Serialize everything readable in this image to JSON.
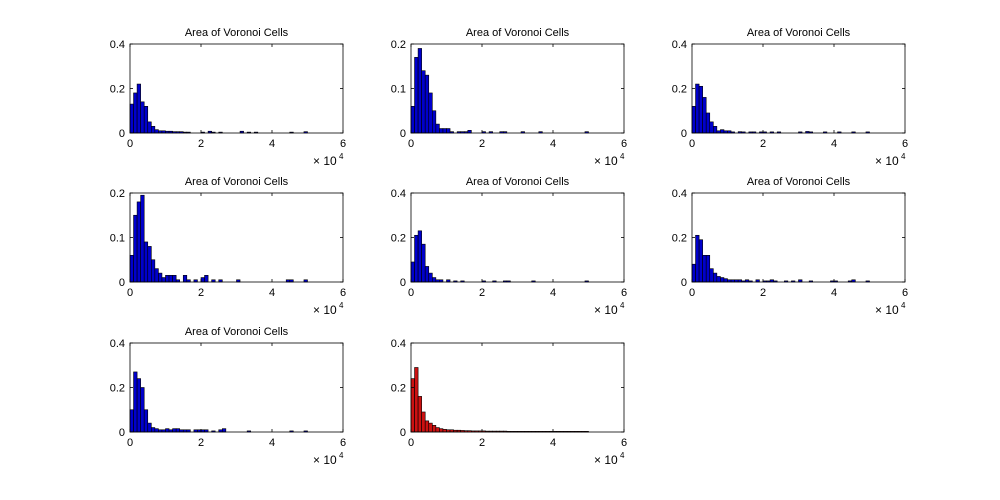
{
  "figure": {
    "background": "#ffffff"
  },
  "chart_data": [
    {
      "type": "bar",
      "title": "Area of Voronoi Cells",
      "xlabel": "",
      "ylabel": "",
      "x_multiplier": "× 10",
      "x_multiplier_exp": "4",
      "xlim": [
        0,
        60000
      ],
      "ylim": [
        0,
        0.4
      ],
      "xticks": [
        "0",
        "2",
        "4",
        "6"
      ],
      "yticks": [
        "0",
        "0.2",
        "0.4"
      ],
      "bin_width": 1000,
      "color": "#0000cc",
      "grid": false,
      "bins": [
        {
          "x": 0,
          "y": 0.13
        },
        {
          "x": 1000,
          "y": 0.18
        },
        {
          "x": 2000,
          "y": 0.22
        },
        {
          "x": 3000,
          "y": 0.14
        },
        {
          "x": 4000,
          "y": 0.12
        },
        {
          "x": 5000,
          "y": 0.05
        },
        {
          "x": 6000,
          "y": 0.03
        },
        {
          "x": 7000,
          "y": 0.015
        },
        {
          "x": 8000,
          "y": 0.01
        },
        {
          "x": 9000,
          "y": 0.01
        },
        {
          "x": 10000,
          "y": 0.008
        },
        {
          "x": 11000,
          "y": 0.008
        },
        {
          "x": 12000,
          "y": 0.006
        },
        {
          "x": 13000,
          "y": 0.006
        },
        {
          "x": 14000,
          "y": 0.006
        },
        {
          "x": 15000,
          "y": 0.004
        },
        {
          "x": 16000,
          "y": 0.004
        },
        {
          "x": 20000,
          "y": 0.004
        },
        {
          "x": 22000,
          "y": 0.008
        },
        {
          "x": 23000,
          "y": 0.004
        },
        {
          "x": 25000,
          "y": 0.004
        },
        {
          "x": 31000,
          "y": 0.008
        },
        {
          "x": 33000,
          "y": 0.004
        },
        {
          "x": 35000,
          "y": 0.004
        },
        {
          "x": 45000,
          "y": 0.004
        },
        {
          "x": 49000,
          "y": 0.006
        }
      ]
    },
    {
      "type": "bar",
      "title": "Area of Voronoi Cells",
      "xlabel": "",
      "ylabel": "",
      "x_multiplier": "× 10",
      "x_multiplier_exp": "4",
      "xlim": [
        0,
        60000
      ],
      "ylim": [
        0,
        0.2
      ],
      "xticks": [
        "0",
        "2",
        "4",
        "6"
      ],
      "yticks": [
        "0",
        "0.1",
        "0.2"
      ],
      "bin_width": 1000,
      "color": "#0000cc",
      "grid": false,
      "bins": [
        {
          "x": 0,
          "y": 0.06
        },
        {
          "x": 1000,
          "y": 0.17
        },
        {
          "x": 2000,
          "y": 0.19
        },
        {
          "x": 3000,
          "y": 0.14
        },
        {
          "x": 4000,
          "y": 0.13
        },
        {
          "x": 5000,
          "y": 0.09
        },
        {
          "x": 6000,
          "y": 0.05
        },
        {
          "x": 7000,
          "y": 0.02
        },
        {
          "x": 8000,
          "y": 0.01
        },
        {
          "x": 9000,
          "y": 0.01
        },
        {
          "x": 10000,
          "y": 0.01
        },
        {
          "x": 11000,
          "y": 0.003
        },
        {
          "x": 13000,
          "y": 0.003
        },
        {
          "x": 14000,
          "y": 0.003
        },
        {
          "x": 15000,
          "y": 0.003
        },
        {
          "x": 16000,
          "y": 0.006
        },
        {
          "x": 20000,
          "y": 0.003
        },
        {
          "x": 22000,
          "y": 0.003
        },
        {
          "x": 25000,
          "y": 0.003
        },
        {
          "x": 26000,
          "y": 0.003
        },
        {
          "x": 31000,
          "y": 0.003
        },
        {
          "x": 36000,
          "y": 0.003
        },
        {
          "x": 49000,
          "y": 0.003
        }
      ]
    },
    {
      "type": "bar",
      "title": "Area of Voronoi Cells",
      "xlabel": "",
      "ylabel": "",
      "x_multiplier": "× 10",
      "x_multiplier_exp": "4",
      "xlim": [
        0,
        60000
      ],
      "ylim": [
        0,
        0.4
      ],
      "xticks": [
        "0",
        "2",
        "4",
        "6"
      ],
      "yticks": [
        "0",
        "0.2",
        "0.4"
      ],
      "bin_width": 1000,
      "color": "#0000cc",
      "grid": false,
      "bins": [
        {
          "x": 0,
          "y": 0.12
        },
        {
          "x": 1000,
          "y": 0.22
        },
        {
          "x": 2000,
          "y": 0.21
        },
        {
          "x": 3000,
          "y": 0.16
        },
        {
          "x": 4000,
          "y": 0.09
        },
        {
          "x": 5000,
          "y": 0.05
        },
        {
          "x": 6000,
          "y": 0.03
        },
        {
          "x": 7000,
          "y": 0.01
        },
        {
          "x": 8000,
          "y": 0.015
        },
        {
          "x": 9000,
          "y": 0.01
        },
        {
          "x": 10000,
          "y": 0.01
        },
        {
          "x": 11000,
          "y": 0.005
        },
        {
          "x": 13000,
          "y": 0.006
        },
        {
          "x": 14000,
          "y": 0.005
        },
        {
          "x": 16000,
          "y": 0.005
        },
        {
          "x": 17000,
          "y": 0.005
        },
        {
          "x": 19000,
          "y": 0.005
        },
        {
          "x": 20000,
          "y": 0.005
        },
        {
          "x": 22000,
          "y": 0.005
        },
        {
          "x": 24000,
          "y": 0.005
        },
        {
          "x": 30000,
          "y": 0.005
        },
        {
          "x": 32000,
          "y": 0.007
        },
        {
          "x": 33000,
          "y": 0.005
        },
        {
          "x": 37000,
          "y": 0.005
        },
        {
          "x": 41000,
          "y": 0.005
        },
        {
          "x": 45000,
          "y": 0.005
        },
        {
          "x": 49000,
          "y": 0.005
        }
      ]
    },
    {
      "type": "bar",
      "title": "Area of Voronoi Cells",
      "xlabel": "",
      "ylabel": "",
      "x_multiplier": "× 10",
      "x_multiplier_exp": "4",
      "xlim": [
        0,
        60000
      ],
      "ylim": [
        0,
        0.2
      ],
      "xticks": [
        "0",
        "2",
        "4",
        "6"
      ],
      "yticks": [
        "0",
        "0.1",
        "0.2"
      ],
      "bin_width": 1000,
      "color": "#0000cc",
      "grid": false,
      "bins": [
        {
          "x": 0,
          "y": 0.06
        },
        {
          "x": 1000,
          "y": 0.15
        },
        {
          "x": 2000,
          "y": 0.18
        },
        {
          "x": 3000,
          "y": 0.195
        },
        {
          "x": 4000,
          "y": 0.09
        },
        {
          "x": 5000,
          "y": 0.08
        },
        {
          "x": 6000,
          "y": 0.05
        },
        {
          "x": 7000,
          "y": 0.03
        },
        {
          "x": 8000,
          "y": 0.02
        },
        {
          "x": 9000,
          "y": 0.01
        },
        {
          "x": 10000,
          "y": 0.015
        },
        {
          "x": 11000,
          "y": 0.015
        },
        {
          "x": 12000,
          "y": 0.015
        },
        {
          "x": 13000,
          "y": 0.005
        },
        {
          "x": 15000,
          "y": 0.015
        },
        {
          "x": 16000,
          "y": 0.005
        },
        {
          "x": 18000,
          "y": 0.005
        },
        {
          "x": 20000,
          "y": 0.01
        },
        {
          "x": 21000,
          "y": 0.015
        },
        {
          "x": 23000,
          "y": 0.005
        },
        {
          "x": 25000,
          "y": 0.005
        },
        {
          "x": 30000,
          "y": 0.005
        },
        {
          "x": 44000,
          "y": 0.005
        },
        {
          "x": 45000,
          "y": 0.005
        },
        {
          "x": 49000,
          "y": 0.005
        }
      ]
    },
    {
      "type": "bar",
      "title": "Area of Voronoi Cells",
      "xlabel": "",
      "ylabel": "",
      "x_multiplier": "× 10",
      "x_multiplier_exp": "4",
      "xlim": [
        0,
        60000
      ],
      "ylim": [
        0,
        0.4
      ],
      "xticks": [
        "0",
        "2",
        "4",
        "6"
      ],
      "yticks": [
        "0",
        "0.2",
        "0.4"
      ],
      "bin_width": 1000,
      "color": "#0000cc",
      "grid": false,
      "bins": [
        {
          "x": 0,
          "y": 0.09
        },
        {
          "x": 1000,
          "y": 0.21
        },
        {
          "x": 2000,
          "y": 0.23
        },
        {
          "x": 3000,
          "y": 0.17
        },
        {
          "x": 4000,
          "y": 0.07
        },
        {
          "x": 5000,
          "y": 0.04
        },
        {
          "x": 6000,
          "y": 0.02
        },
        {
          "x": 7000,
          "y": 0.01
        },
        {
          "x": 8000,
          "y": 0.01
        },
        {
          "x": 10000,
          "y": 0.01
        },
        {
          "x": 12000,
          "y": 0.005
        },
        {
          "x": 14000,
          "y": 0.005
        },
        {
          "x": 20000,
          "y": 0.005
        },
        {
          "x": 23000,
          "y": 0.005
        },
        {
          "x": 26000,
          "y": 0.005
        },
        {
          "x": 27000,
          "y": 0.005
        },
        {
          "x": 34000,
          "y": 0.005
        },
        {
          "x": 49000,
          "y": 0.005
        }
      ]
    },
    {
      "type": "bar",
      "title": "Area of Voronoi Cells",
      "xlabel": "",
      "ylabel": "",
      "x_multiplier": "× 10",
      "x_multiplier_exp": "4",
      "xlim": [
        0,
        60000
      ],
      "ylim": [
        0,
        0.4
      ],
      "xticks": [
        "0",
        "2",
        "4",
        "6"
      ],
      "yticks": [
        "0",
        "0.2",
        "0.4"
      ],
      "bin_width": 1000,
      "color": "#0000cc",
      "grid": false,
      "bins": [
        {
          "x": 0,
          "y": 0.08
        },
        {
          "x": 1000,
          "y": 0.21
        },
        {
          "x": 2000,
          "y": 0.19
        },
        {
          "x": 3000,
          "y": 0.12
        },
        {
          "x": 4000,
          "y": 0.12
        },
        {
          "x": 5000,
          "y": 0.06
        },
        {
          "x": 6000,
          "y": 0.04
        },
        {
          "x": 7000,
          "y": 0.025
        },
        {
          "x": 8000,
          "y": 0.02
        },
        {
          "x": 9000,
          "y": 0.015
        },
        {
          "x": 10000,
          "y": 0.01
        },
        {
          "x": 11000,
          "y": 0.01
        },
        {
          "x": 12000,
          "y": 0.01
        },
        {
          "x": 13000,
          "y": 0.01
        },
        {
          "x": 14000,
          "y": 0.005
        },
        {
          "x": 15000,
          "y": 0.01
        },
        {
          "x": 16000,
          "y": 0.005
        },
        {
          "x": 18000,
          "y": 0.01
        },
        {
          "x": 20000,
          "y": 0.005
        },
        {
          "x": 21000,
          "y": 0.005
        },
        {
          "x": 22000,
          "y": 0.01
        },
        {
          "x": 23000,
          "y": 0.005
        },
        {
          "x": 26000,
          "y": 0.005
        },
        {
          "x": 28000,
          "y": 0.005
        },
        {
          "x": 30000,
          "y": 0.01
        },
        {
          "x": 33000,
          "y": 0.005
        },
        {
          "x": 39000,
          "y": 0.005
        },
        {
          "x": 40000,
          "y": 0.005
        },
        {
          "x": 44000,
          "y": 0.005
        },
        {
          "x": 45000,
          "y": 0.01
        },
        {
          "x": 49000,
          "y": 0.005
        }
      ]
    },
    {
      "type": "bar",
      "title": "Area of Voronoi Cells",
      "xlabel": "",
      "ylabel": "",
      "x_multiplier": "× 10",
      "x_multiplier_exp": "4",
      "xlim": [
        0,
        60000
      ],
      "ylim": [
        0,
        0.4
      ],
      "xticks": [
        "0",
        "2",
        "4",
        "6"
      ],
      "yticks": [
        "0",
        "0.2",
        "0.4"
      ],
      "bin_width": 1000,
      "color": "#0000cc",
      "grid": false,
      "bins": [
        {
          "x": 0,
          "y": 0.1
        },
        {
          "x": 1000,
          "y": 0.27
        },
        {
          "x": 2000,
          "y": 0.24
        },
        {
          "x": 3000,
          "y": 0.2
        },
        {
          "x": 4000,
          "y": 0.1
        },
        {
          "x": 5000,
          "y": 0.04
        },
        {
          "x": 6000,
          "y": 0.02
        },
        {
          "x": 7000,
          "y": 0.015
        },
        {
          "x": 8000,
          "y": 0.01
        },
        {
          "x": 9000,
          "y": 0.01
        },
        {
          "x": 10000,
          "y": 0.015
        },
        {
          "x": 11000,
          "y": 0.01
        },
        {
          "x": 12000,
          "y": 0.015
        },
        {
          "x": 13000,
          "y": 0.015
        },
        {
          "x": 14000,
          "y": 0.01
        },
        {
          "x": 15000,
          "y": 0.01
        },
        {
          "x": 16000,
          "y": 0.01
        },
        {
          "x": 18000,
          "y": 0.01
        },
        {
          "x": 19000,
          "y": 0.01
        },
        {
          "x": 20000,
          "y": 0.01
        },
        {
          "x": 21000,
          "y": 0.01
        },
        {
          "x": 23000,
          "y": 0.005
        },
        {
          "x": 25000,
          "y": 0.01
        },
        {
          "x": 26000,
          "y": 0.015
        },
        {
          "x": 33000,
          "y": 0.005
        },
        {
          "x": 45000,
          "y": 0.005
        },
        {
          "x": 49000,
          "y": 0.005
        }
      ]
    },
    {
      "type": "bar",
      "title": "",
      "xlabel": "",
      "ylabel": "",
      "x_multiplier": "× 10",
      "x_multiplier_exp": "4",
      "xlim": [
        0,
        60000
      ],
      "ylim": [
        0,
        0.4
      ],
      "xticks": [
        "0",
        "2",
        "4",
        "6"
      ],
      "yticks": [
        "0",
        "0.2",
        "0.4"
      ],
      "bin_width": 1000,
      "color": "#cc1111",
      "grid": false,
      "bins": [
        {
          "x": 0,
          "y": 0.24
        },
        {
          "x": 1000,
          "y": 0.29
        },
        {
          "x": 2000,
          "y": 0.16
        },
        {
          "x": 3000,
          "y": 0.09
        },
        {
          "x": 4000,
          "y": 0.05
        },
        {
          "x": 5000,
          "y": 0.04
        },
        {
          "x": 6000,
          "y": 0.03
        },
        {
          "x": 7000,
          "y": 0.02
        },
        {
          "x": 8000,
          "y": 0.015
        },
        {
          "x": 9000,
          "y": 0.012
        },
        {
          "x": 10000,
          "y": 0.01
        },
        {
          "x": 11000,
          "y": 0.01
        },
        {
          "x": 12000,
          "y": 0.008
        },
        {
          "x": 13000,
          "y": 0.008
        },
        {
          "x": 14000,
          "y": 0.007
        },
        {
          "x": 15000,
          "y": 0.006
        },
        {
          "x": 16000,
          "y": 0.006
        },
        {
          "x": 17000,
          "y": 0.005
        },
        {
          "x": 18000,
          "y": 0.005
        },
        {
          "x": 19000,
          "y": 0.005
        },
        {
          "x": 20000,
          "y": 0.005
        },
        {
          "x": 21000,
          "y": 0.004
        },
        {
          "x": 22000,
          "y": 0.004
        },
        {
          "x": 23000,
          "y": 0.004
        },
        {
          "x": 24000,
          "y": 0.004
        },
        {
          "x": 25000,
          "y": 0.004
        },
        {
          "x": 26000,
          "y": 0.004
        },
        {
          "x": 27000,
          "y": 0.003
        },
        {
          "x": 28000,
          "y": 0.003
        },
        {
          "x": 29000,
          "y": 0.003
        },
        {
          "x": 30000,
          "y": 0.003
        },
        {
          "x": 31000,
          "y": 0.003
        },
        {
          "x": 32000,
          "y": 0.003
        },
        {
          "x": 33000,
          "y": 0.003
        },
        {
          "x": 34000,
          "y": 0.003
        },
        {
          "x": 35000,
          "y": 0.003
        },
        {
          "x": 36000,
          "y": 0.003
        },
        {
          "x": 37000,
          "y": 0.003
        },
        {
          "x": 38000,
          "y": 0.003
        },
        {
          "x": 39000,
          "y": 0.003
        },
        {
          "x": 40000,
          "y": 0.003
        },
        {
          "x": 41000,
          "y": 0.003
        },
        {
          "x": 42000,
          "y": 0.003
        },
        {
          "x": 43000,
          "y": 0.003
        },
        {
          "x": 44000,
          "y": 0.003
        },
        {
          "x": 45000,
          "y": 0.003
        },
        {
          "x": 46000,
          "y": 0.003
        },
        {
          "x": 47000,
          "y": 0.003
        },
        {
          "x": 48000,
          "y": 0.003
        },
        {
          "x": 49000,
          "y": 0.003
        }
      ]
    }
  ]
}
